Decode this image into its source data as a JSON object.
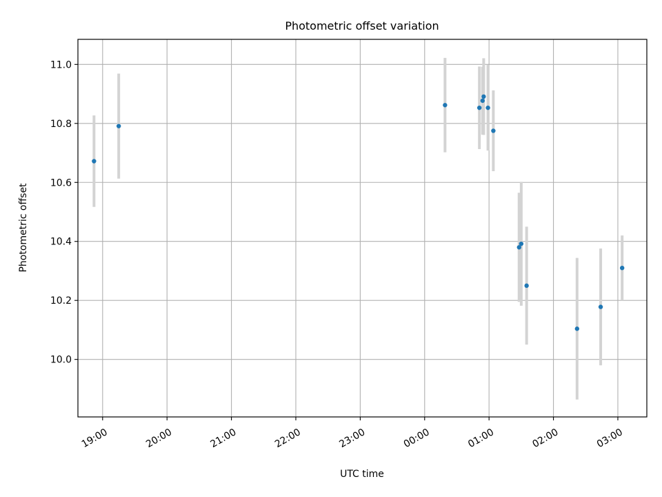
{
  "chart_data": {
    "type": "scatter",
    "title": "Photometric offset variation",
    "xlabel": "UTC time",
    "ylabel": "Photometric offset",
    "x_unit": "UTC time (HH:MM)",
    "xlim": [
      "18:37",
      "03:27"
    ],
    "ylim": [
      9.805,
      11.085
    ],
    "x_ticks": [
      "19:00",
      "20:00",
      "21:00",
      "22:00",
      "23:00",
      "00:00",
      "01:00",
      "02:00",
      "03:00"
    ],
    "y_ticks": [
      "10.0",
      "10.2",
      "10.4",
      "10.6",
      "10.8",
      "11.0"
    ],
    "grid": true,
    "legend": "none",
    "colors": {
      "point": "#1f77b4",
      "errorbar": "#d3d3d3",
      "grid": "#b0b0b0"
    },
    "series": [
      {
        "points": [
          {
            "x": "18:52",
            "y": 10.672,
            "err": 0.155
          },
          {
            "x": "19:15",
            "y": 10.791,
            "err": 0.178
          },
          {
            "x": "00:19",
            "y": 10.862,
            "err": 0.16
          },
          {
            "x": "00:51",
            "y": 10.853,
            "err": 0.14
          },
          {
            "x": "00:54",
            "y": 10.877,
            "err": 0.115
          },
          {
            "x": "00:55",
            "y": 10.891,
            "err": 0.13
          },
          {
            "x": "00:59",
            "y": 10.853,
            "err": 0.145
          },
          {
            "x": "01:04",
            "y": 10.775,
            "err": 0.137
          },
          {
            "x": "01:28",
            "y": 10.38,
            "err": 0.185
          },
          {
            "x": "01:30",
            "y": 10.392,
            "err": 0.21
          },
          {
            "x": "01:35",
            "y": 10.25,
            "err": 0.2
          },
          {
            "x": "02:22",
            "y": 10.104,
            "err": 0.24
          },
          {
            "x": "02:44",
            "y": 10.178,
            "err": 0.198
          },
          {
            "x": "03:04",
            "y": 10.31,
            "err": 0.11
          }
        ]
      }
    ]
  }
}
